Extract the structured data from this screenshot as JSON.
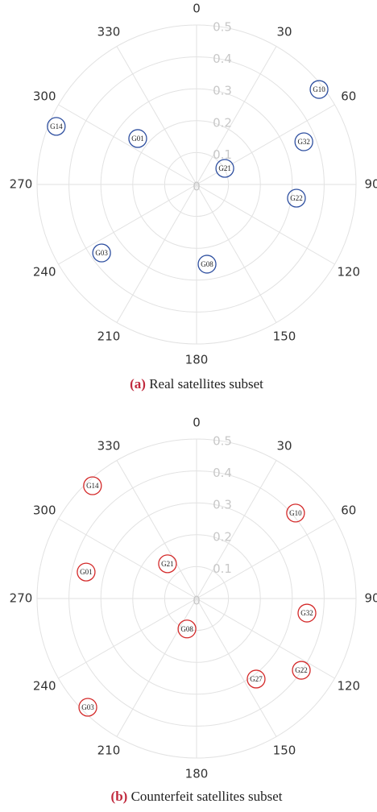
{
  "chart_data": [
    {
      "type": "polar",
      "caption_label": "(a)",
      "caption": "Real satellites subset",
      "color": "#2e4fa0",
      "labels": [
        "G10",
        "G32",
        "G21",
        "G22",
        "G08",
        "G03",
        "G14",
        "G01"
      ],
      "theta": [
        52.2,
        68.3,
        60.3,
        97.8,
        172.5,
        234.2,
        292.5,
        308
      ],
      "values": [
        0.486,
        0.362,
        0.102,
        0.316,
        0.252,
        0.367,
        0.476,
        0.234
      ],
      "rlim": [
        0,
        0.5
      ],
      "rticks": [
        0,
        0.1,
        0.2,
        0.3,
        0.4,
        0.5
      ],
      "thetaticks": [
        0,
        30,
        60,
        90,
        120,
        150,
        180,
        210,
        240,
        270,
        300,
        330
      ],
      "grid": true
    },
    {
      "type": "polar",
      "caption_label": "(b)",
      "caption": "Counterfeit satellites subset",
      "color": "#d42a2a",
      "labels": [
        "G14",
        "G10",
        "G21",
        "G01",
        "G32",
        "G08",
        "G22",
        "G27",
        "G03"
      ],
      "theta": [
        317.3,
        49.2,
        320.1,
        283.5,
        97.5,
        197.5,
        124.4,
        143.5,
        225
      ],
      "values": [
        0.481,
        0.41,
        0.142,
        0.356,
        0.349,
        0.1,
        0.398,
        0.314,
        0.482
      ],
      "rlim": [
        0,
        0.5
      ],
      "rticks": [
        0,
        0.1,
        0.2,
        0.3,
        0.4,
        0.5
      ],
      "thetaticks": [
        0,
        30,
        60,
        90,
        120,
        150,
        180,
        210,
        240,
        270,
        300,
        330
      ],
      "grid": true
    }
  ]
}
